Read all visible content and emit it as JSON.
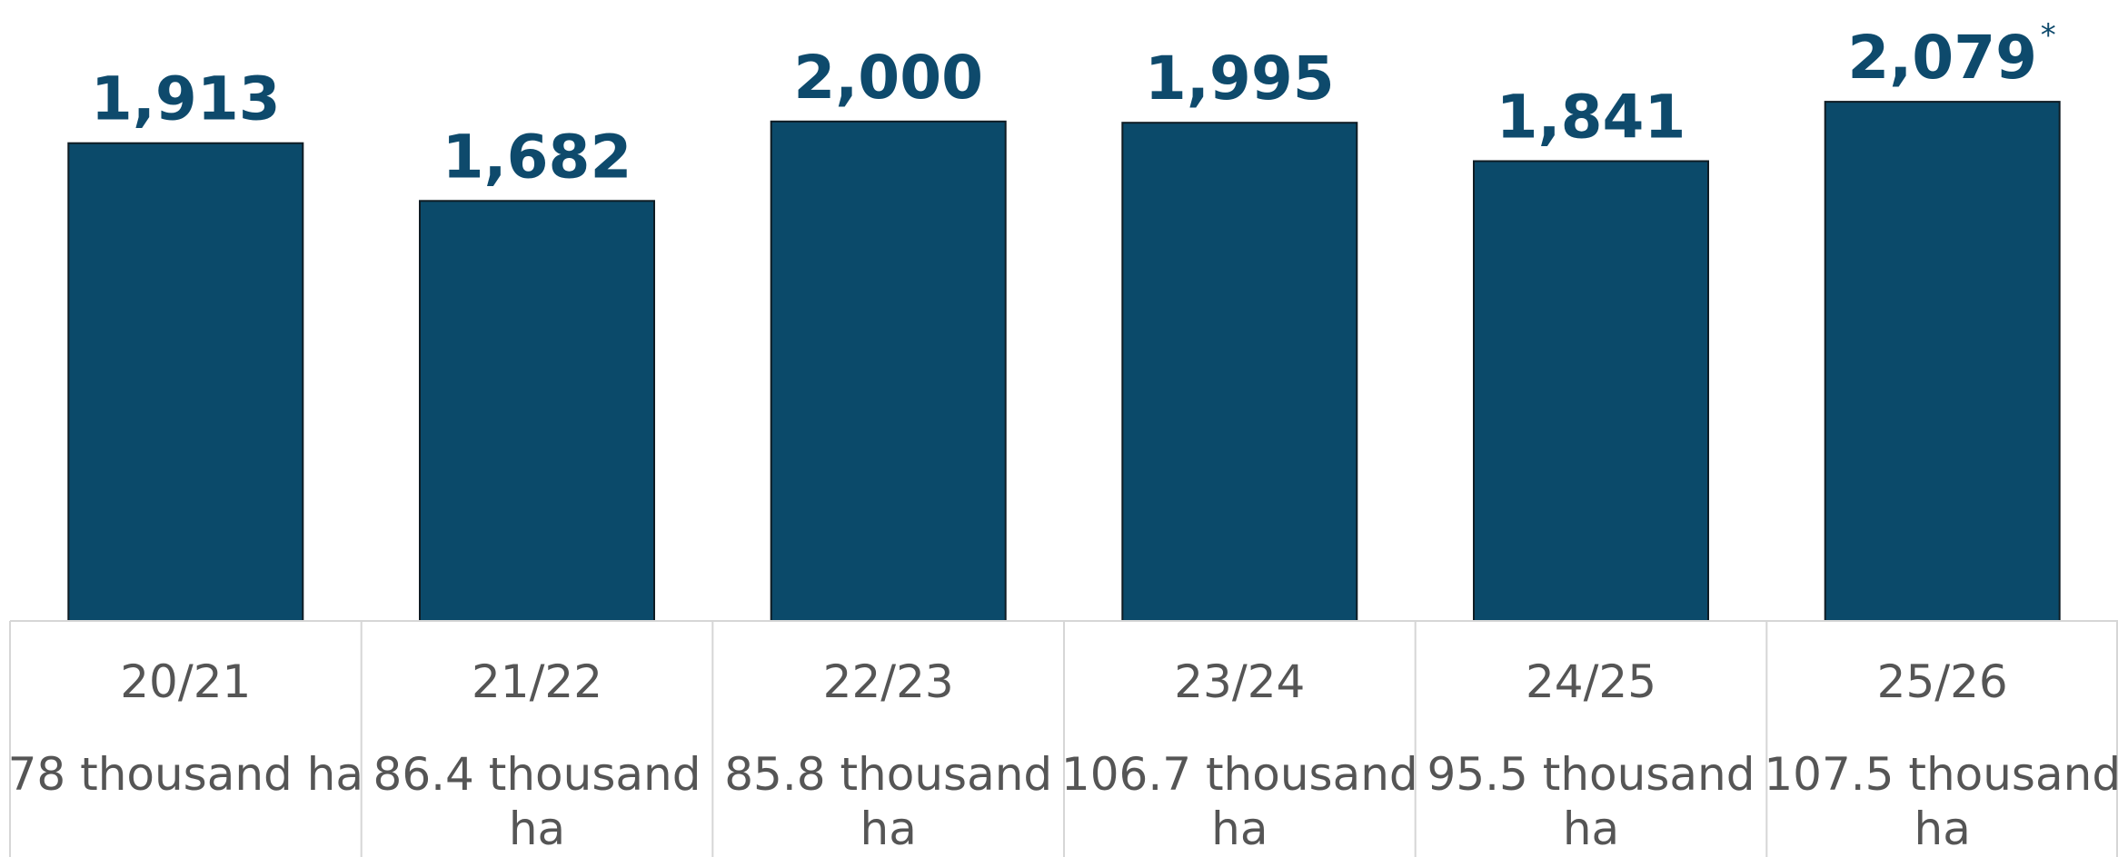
{
  "chart_data": {
    "type": "bar",
    "categories": [
      "20/21",
      "21/22",
      "22/23",
      "23/24",
      "24/25",
      "25/26"
    ],
    "values": [
      1913,
      1682,
      2000,
      1995,
      1841,
      2079
    ],
    "value_labels": [
      "1,913",
      "1,682",
      "2,000",
      "1,995",
      "1,841",
      "2,079"
    ],
    "annotations": [
      {
        "category": "25/26",
        "text": "*"
      }
    ],
    "category_details": [
      [
        "78 thousand ha"
      ],
      [
        "86.4 thousand",
        "ha"
      ],
      [
        "85.8 thousand",
        "ha"
      ],
      [
        "106.7 thousand",
        "ha"
      ],
      [
        "95.5 thousand",
        "ha"
      ],
      [
        "107.5 thousand",
        "ha"
      ]
    ],
    "title": "",
    "xlabel": "",
    "ylabel": "",
    "grid": false,
    "colors": {
      "bar": "#0b4a6a",
      "value_label": "#0e4a6c",
      "category_label": "#555555",
      "table_border": "#d6d6d6"
    }
  }
}
